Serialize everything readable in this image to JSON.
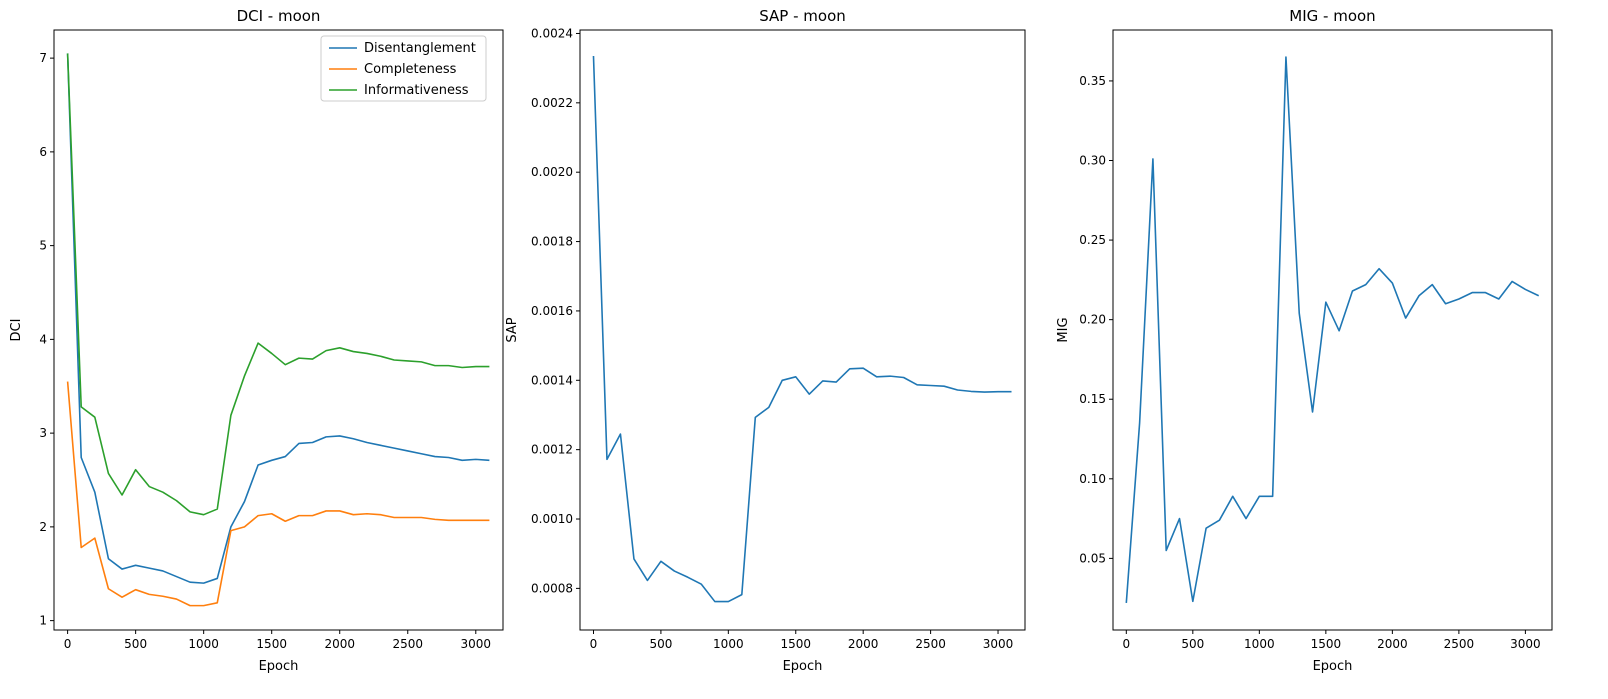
{
  "chart_data": [
    {
      "type": "line",
      "title": "DCI - moon",
      "xlabel": "Epoch",
      "ylabel": "DCI",
      "xlim": [
        -100,
        3200
      ],
      "ylim": [
        0.9,
        7.3
      ],
      "xticks": [
        0,
        500,
        1000,
        1500,
        2000,
        2500,
        3000
      ],
      "yticks": [
        1,
        2,
        3,
        4,
        5,
        6,
        7
      ],
      "legend": "top-right",
      "x": [
        0,
        100,
        200,
        300,
        400,
        500,
        600,
        700,
        800,
        900,
        1000,
        1100,
        1200,
        1300,
        1400,
        1500,
        1600,
        1700,
        1800,
        1900,
        2000,
        2100,
        2200,
        2300,
        2400,
        2500,
        2600,
        2700,
        2800,
        2900,
        3000,
        3100
      ],
      "series": [
        {
          "name": "Disentanglement",
          "color": "#1f77b4",
          "values": [
            7.05,
            2.74,
            2.37,
            1.66,
            1.55,
            1.59,
            1.56,
            1.53,
            1.47,
            1.41,
            1.4,
            1.45,
            2.0,
            2.27,
            2.66,
            2.71,
            2.75,
            2.89,
            2.9,
            2.96,
            2.97,
            2.94,
            2.9,
            2.87,
            2.84,
            2.81,
            2.78,
            2.75,
            2.74,
            2.71,
            2.72,
            2.71
          ]
        },
        {
          "name": "Completeness",
          "color": "#ff7f0e",
          "values": [
            3.55,
            1.78,
            1.88,
            1.34,
            1.25,
            1.33,
            1.28,
            1.26,
            1.23,
            1.16,
            1.16,
            1.19,
            1.96,
            2.0,
            2.12,
            2.14,
            2.06,
            2.12,
            2.12,
            2.17,
            2.17,
            2.13,
            2.14,
            2.13,
            2.1,
            2.1,
            2.1,
            2.08,
            2.07,
            2.07,
            2.07,
            2.07
          ]
        },
        {
          "name": "Informativeness",
          "color": "#2ca02c",
          "values": [
            7.05,
            3.28,
            3.17,
            2.57,
            2.34,
            2.61,
            2.43,
            2.37,
            2.28,
            2.16,
            2.13,
            2.19,
            3.19,
            3.61,
            3.96,
            3.85,
            3.73,
            3.8,
            3.79,
            3.88,
            3.91,
            3.87,
            3.85,
            3.82,
            3.78,
            3.77,
            3.76,
            3.72,
            3.72,
            3.7,
            3.71,
            3.71
          ]
        }
      ]
    },
    {
      "type": "line",
      "title": "SAP - moon",
      "xlabel": "Epoch",
      "ylabel": "SAP",
      "xlim": [
        -100,
        3200
      ],
      "ylim": [
        0.00068,
        0.00241
      ],
      "xticks": [
        0,
        500,
        1000,
        1500,
        2000,
        2500,
        3000
      ],
      "yticks": [
        0.0008,
        0.001,
        0.0012,
        0.0014,
        0.0016,
        0.0018,
        0.002,
        0.0022,
        0.0024
      ],
      "ytick_labels": [
        "0.0008",
        "0.0010",
        "0.0012",
        "0.0014",
        "0.0016",
        "0.0018",
        "0.0020",
        "0.0022",
        "0.0024"
      ],
      "x": [
        0,
        100,
        200,
        300,
        400,
        500,
        600,
        700,
        800,
        900,
        1000,
        1100,
        1200,
        1300,
        1400,
        1500,
        1600,
        1700,
        1800,
        1900,
        2000,
        2100,
        2200,
        2300,
        2400,
        2500,
        2600,
        2700,
        2800,
        2900,
        3000,
        3100
      ],
      "series": [
        {
          "color": "#1f77b4",
          "values": [
            0.002335,
            0.001172,
            0.001245,
            0.000885,
            0.000823,
            0.000878,
            0.00085,
            0.000832,
            0.000812,
            0.000762,
            0.000762,
            0.000782,
            0.001293,
            0.001322,
            0.0014,
            0.00141,
            0.00136,
            0.001398,
            0.001395,
            0.001433,
            0.001435,
            0.00141,
            0.001412,
            0.001408,
            0.001387,
            0.001385,
            0.001383,
            0.001372,
            0.001368,
            0.001366,
            0.001367,
            0.001367
          ]
        }
      ]
    },
    {
      "type": "line",
      "title": "MIG - moon",
      "xlabel": "Epoch",
      "ylabel": "MIG",
      "xlim": [
        -100,
        3200
      ],
      "ylim": [
        0.005,
        0.382
      ],
      "xticks": [
        0,
        500,
        1000,
        1500,
        2000,
        2500,
        3000
      ],
      "yticks": [
        0.05,
        0.1,
        0.15,
        0.2,
        0.25,
        0.3,
        0.35
      ],
      "ytick_labels": [
        "0.05",
        "0.10",
        "0.15",
        "0.20",
        "0.25",
        "0.30",
        "0.35"
      ],
      "x": [
        0,
        100,
        200,
        300,
        400,
        500,
        600,
        700,
        800,
        900,
        1000,
        1100,
        1200,
        1300,
        1400,
        1500,
        1600,
        1700,
        1800,
        1900,
        2000,
        2100,
        2200,
        2300,
        2400,
        2500,
        2600,
        2700,
        2800,
        2900,
        3000,
        3100
      ],
      "series": [
        {
          "color": "#1f77b4",
          "values": [
            0.022,
            0.135,
            0.301,
            0.055,
            0.075,
            0.023,
            0.069,
            0.074,
            0.089,
            0.075,
            0.089,
            0.089,
            0.365,
            0.204,
            0.142,
            0.211,
            0.193,
            0.218,
            0.222,
            0.232,
            0.223,
            0.201,
            0.215,
            0.222,
            0.21,
            0.213,
            0.217,
            0.217,
            0.213,
            0.224,
            0.219,
            0.215
          ]
        }
      ]
    }
  ]
}
